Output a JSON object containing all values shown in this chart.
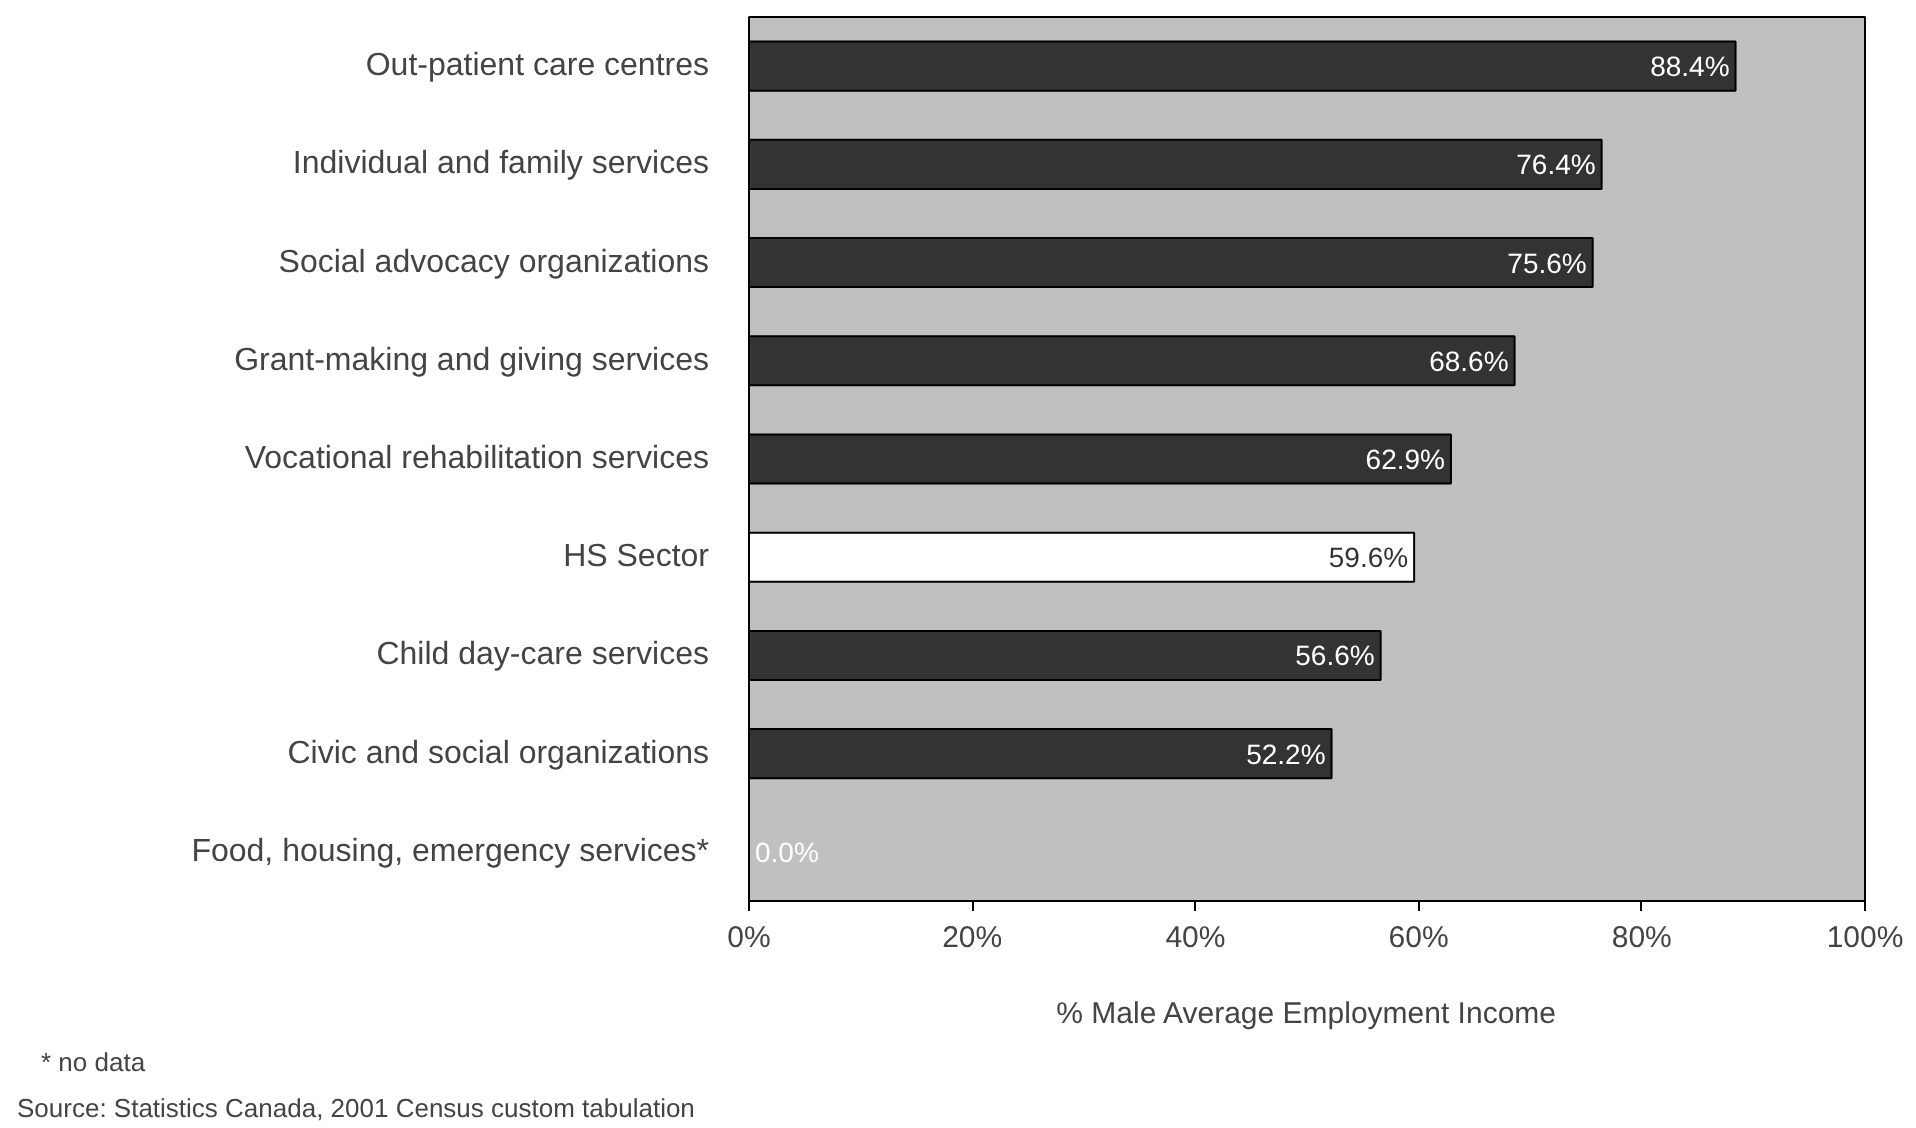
{
  "chart_data": {
    "type": "bar",
    "orientation": "horizontal",
    "categories": [
      "Out-patient care centres",
      "Individual and family services",
      "Social advocacy organizations",
      "Grant-making and giving services",
      "Vocational rehabilitation services",
      "HS Sector",
      "Child day-care services",
      "Civic and social organizations",
      "Food, housing, emergency services*"
    ],
    "values": [
      88.4,
      76.4,
      75.6,
      68.6,
      62.9,
      59.6,
      56.6,
      52.2,
      0.0
    ],
    "colors": [
      "#333333",
      "#333333",
      "#333333",
      "#333333",
      "#333333",
      "#ffffff",
      "#333333",
      "#333333",
      "#333333"
    ],
    "value_labels": [
      "88.4%",
      "76.4%",
      "75.6%",
      "68.6%",
      "62.9%",
      "59.6%",
      "56.6%",
      "52.2%",
      "0.0%"
    ],
    "xlim": [
      0,
      100
    ],
    "xticks": [
      {
        "value": 0,
        "label": "0%"
      },
      {
        "value": 20,
        "label": "20%"
      },
      {
        "value": 40,
        "label": "40%"
      },
      {
        "value": 60,
        "label": "60%"
      },
      {
        "value": 80,
        "label": "80%"
      },
      {
        "value": 100,
        "label": "100%"
      }
    ],
    "xlabel": "% Male Average Employment Income",
    "annotations": [
      "* no data",
      "Source: Statistics Canada, 2001 Census custom tabulation"
    ],
    "grid": false
  }
}
